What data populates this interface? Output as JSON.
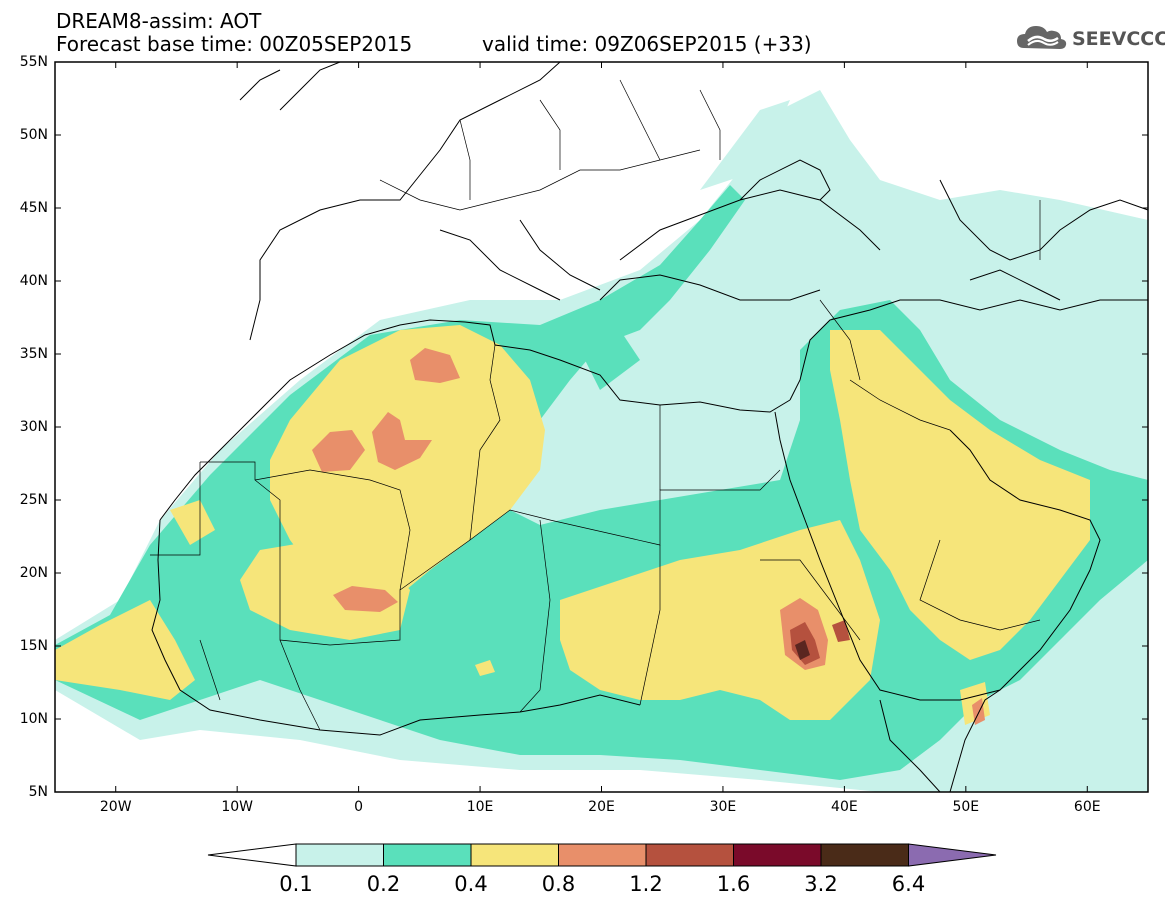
{
  "header": {
    "title": "DREAM8-assim: AOT",
    "base_time": "Forecast base time: 00Z05SEP2015",
    "valid_time": "valid time: 09Z06SEP2015 (+33)",
    "logo_text": "SEEVCCC"
  },
  "map": {
    "projection": "lat-lon",
    "lon_range": [
      -25,
      65
    ],
    "lat_range": [
      5,
      55
    ],
    "variable": "AOT",
    "lat_labels": [
      "55N",
      "50N",
      "45N",
      "40N",
      "35N",
      "30N",
      "25N",
      "20N",
      "15N",
      "10N",
      "5N"
    ],
    "lon_labels": [
      "20W",
      "10W",
      "0",
      "10E",
      "20E",
      "30E",
      "40E",
      "50E",
      "60E"
    ]
  },
  "legend": {
    "levels": [
      "0.1",
      "0.2",
      "0.4",
      "0.8",
      "1.2",
      "1.6",
      "3.2",
      "6.4"
    ],
    "colors": [
      "#ffffff",
      "#c8f2ea",
      "#5ae0bb",
      "#f6e57a",
      "#e88f6a",
      "#b5513e",
      "#7a0a2a",
      "#4a2b18",
      "#8b6bb0"
    ]
  }
}
